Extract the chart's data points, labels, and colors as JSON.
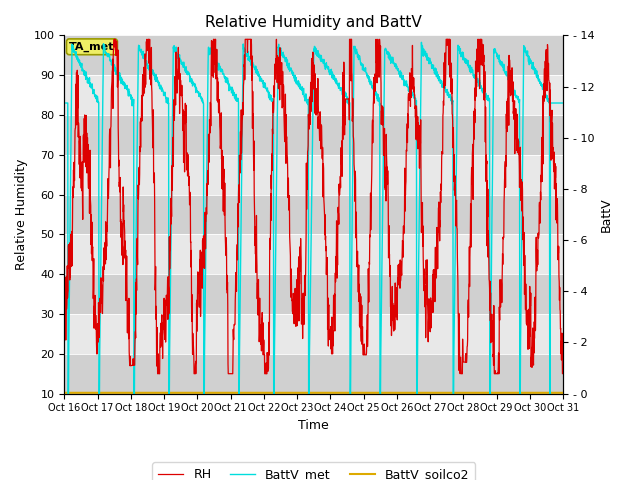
{
  "title": "Relative Humidity and BattV",
  "xlabel": "Time",
  "ylabel_left": "Relative Humidity",
  "ylabel_right": "BattV",
  "ylim_left": [
    10,
    100
  ],
  "ylim_right": [
    0,
    14
  ],
  "yticks_left": [
    10,
    20,
    30,
    40,
    50,
    60,
    70,
    80,
    90,
    100
  ],
  "yticks_right": [
    0,
    2,
    4,
    6,
    8,
    10,
    12,
    14
  ],
  "color_rh": "#dd0000",
  "color_battv_met": "#00dddd",
  "color_battv_soilco2": "#ddaa00",
  "bg_color_light": "#e8e8e8",
  "bg_color_dark": "#d0d0d0",
  "fig_color": "#ffffff",
  "ta_met_label": "TA_met",
  "x_tick_labels": [
    "Oct 16",
    "Oct 17",
    "Oct 18",
    "Oct 19",
    "Oct 20",
    "Oct 21",
    "Oct 22",
    "Oct 23",
    "Oct 24",
    "Oct 25",
    "Oct 26",
    "Oct 27",
    "Oct 28",
    "Oct 29",
    "Oct 30",
    "Oct 31"
  ],
  "n_points": 2000,
  "seed": 123
}
